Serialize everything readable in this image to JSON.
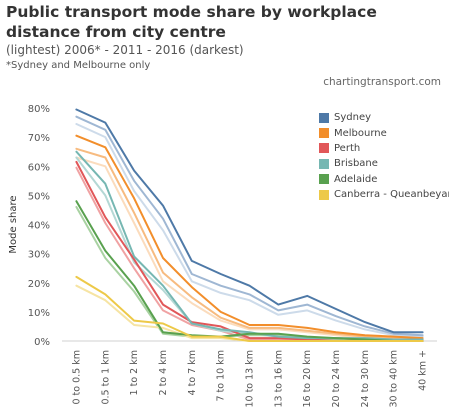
{
  "title": "Public transport mode share by workplace distance from city centre",
  "subtitle": "(lightest) 2006* - 2011 - 2016 (darkest)",
  "note": "*Sydney and Melbourne only",
  "source": "chartingtransport.com",
  "chart_data": {
    "type": "line",
    "title": "Public transport mode share by workplace distance from city centre",
    "ylabel": "Mode share",
    "xlabel": "",
    "categories": [
      "0 to 0.5 km",
      "0.5 to 1 km",
      "1 to 2 km",
      "2 to 4 km",
      "4 to 7 km",
      "7 to 10 km",
      "10 to 13 km",
      "13 to 16 km",
      "16 to 20 km",
      "20 to 24 km",
      "24 to 30 km",
      "30 to 40 km",
      "40 km +"
    ],
    "ylim": [
      0,
      80
    ],
    "yticks": [
      0,
      10,
      20,
      30,
      40,
      50,
      60,
      70,
      80
    ],
    "ytick_labels": [
      "0%",
      "10%",
      "20%",
      "30%",
      "40%",
      "50%",
      "60%",
      "70%",
      "80%"
    ],
    "grid": false,
    "legend_position": "top-right",
    "series": [
      {
        "name": "Sydney",
        "year": "2016",
        "color": "#4e79a7",
        "values": [
          79.5,
          75,
          58.5,
          46.5,
          27.5,
          23,
          19,
          12.5,
          15.5,
          11,
          6.5,
          3,
          3
        ]
      },
      {
        "name": "Sydney",
        "year": "2011",
        "color": "#9fb7d3",
        "values": [
          77,
          72.5,
          55,
          42,
          23,
          19,
          16,
          10.5,
          12.5,
          8.5,
          5,
          2.5,
          2
        ]
      },
      {
        "name": "Sydney",
        "year": "2006",
        "color": "#cddbea",
        "values": [
          74.5,
          70,
          51.5,
          38,
          20.5,
          16.5,
          14,
          9,
          10.5,
          7,
          4,
          2,
          1.5
        ]
      },
      {
        "name": "Melbourne",
        "year": "2016",
        "color": "#f28e2b",
        "values": [
          70.5,
          66.5,
          49,
          28.5,
          18.5,
          10,
          5.5,
          5.5,
          4.5,
          3,
          2,
          1.5,
          1
        ]
      },
      {
        "name": "Melbourne",
        "year": "2011",
        "color": "#f7bb80",
        "values": [
          66,
          63,
          44,
          23.5,
          15,
          8,
          4.5,
          4.5,
          3.5,
          2.5,
          1.5,
          1,
          0.5
        ]
      },
      {
        "name": "Melbourne",
        "year": "2006",
        "color": "#fbdcbd",
        "values": [
          63,
          60,
          40.5,
          20.5,
          13,
          7,
          4,
          4,
          3,
          2,
          1,
          0.5,
          0.5
        ]
      },
      {
        "name": "Perth",
        "year": "2016",
        "color": "#e15759",
        "values": [
          61.5,
          42.5,
          28,
          12.5,
          6.5,
          5,
          1,
          1,
          0.5,
          1,
          0.5,
          0,
          0
        ]
      },
      {
        "name": "Perth",
        "year": "2011",
        "color": "#f0a2a3",
        "values": [
          59.5,
          40.5,
          25,
          10.5,
          5.5,
          3.5,
          0.5,
          0.5,
          0.5,
          0.5,
          0,
          0,
          0
        ]
      },
      {
        "name": "Brisbane",
        "year": "2016",
        "color": "#76b7b2",
        "values": [
          65,
          54,
          29,
          19,
          6,
          4,
          3,
          1.5,
          1,
          1,
          1,
          0.5,
          0.5
        ]
      },
      {
        "name": "Brisbane",
        "year": "2011",
        "color": "#b4d8d5",
        "values": [
          63,
          50,
          27,
          17.5,
          6,
          3.5,
          2.5,
          1.5,
          1,
          1,
          0.5,
          0.5,
          0.5
        ]
      },
      {
        "name": "Adelaide",
        "year": "2016",
        "color": "#59a14f",
        "values": [
          48,
          31,
          19,
          3,
          2,
          1.5,
          2.5,
          2.5,
          1.5,
          1,
          0.5,
          0,
          0
        ]
      },
      {
        "name": "Adelaide",
        "year": "2011",
        "color": "#a9d2a2",
        "values": [
          46,
          28.5,
          17,
          2.5,
          1.5,
          1.5,
          2,
          2,
          1,
          0.5,
          0,
          0,
          0
        ]
      },
      {
        "name": "Canberra - Queanbeyan",
        "year": "2016",
        "color": "#edc948",
        "values": [
          22,
          16,
          7,
          6,
          1.5,
          1.5,
          0,
          0,
          0,
          0,
          0,
          0,
          0
        ]
      },
      {
        "name": "Canberra - Queanbeyan",
        "year": "2011",
        "color": "#f6e4a3",
        "values": [
          19,
          14,
          5.5,
          4.5,
          1,
          1,
          0,
          0,
          0,
          0,
          0,
          0,
          0
        ]
      }
    ]
  },
  "legend": [
    {
      "label": "Sydney",
      "color": "#4e79a7"
    },
    {
      "label": "Melbourne",
      "color": "#f28e2b"
    },
    {
      "label": "Perth",
      "color": "#e15759"
    },
    {
      "label": "Brisbane",
      "color": "#76b7b2"
    },
    {
      "label": "Adelaide",
      "color": "#59a14f"
    },
    {
      "label": "Canberra - Queanbeyan",
      "color": "#edc948"
    }
  ]
}
